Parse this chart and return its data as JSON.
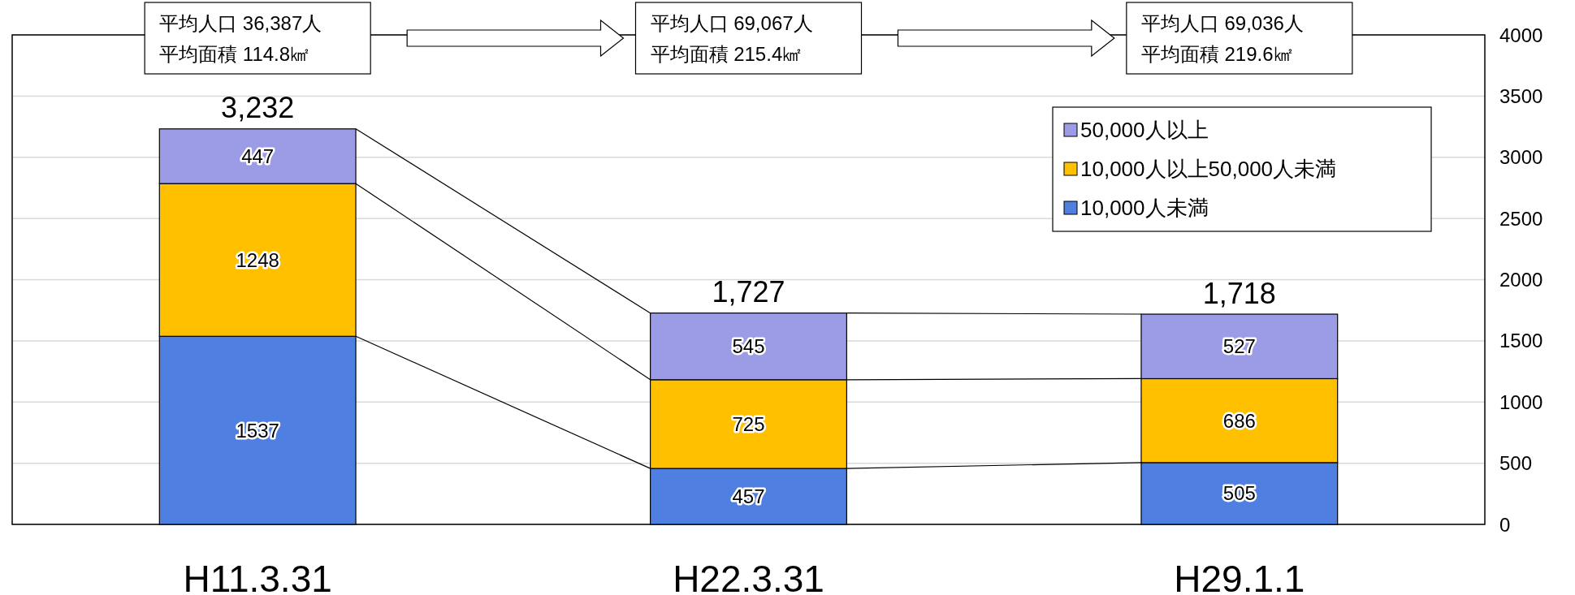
{
  "chart_data": {
    "type": "bar",
    "stacked": true,
    "categories": [
      "H11.3.31",
      "H22.3.31",
      "H29.1.1"
    ],
    "series": [
      {
        "name": "10,000人未満",
        "color": "#4f7fe0",
        "values": [
          1537,
          457,
          505
        ]
      },
      {
        "name": "10,000人以上50,000人未満",
        "color": "#ffc000",
        "values": [
          1248,
          725,
          686
        ]
      },
      {
        "name": "50,000人以上",
        "color": "#9b9be6",
        "values": [
          447,
          545,
          527
        ]
      }
    ],
    "ylim": [
      0,
      4000
    ],
    "yticks": [
      0,
      500,
      1000,
      1500,
      2000,
      2500,
      3000,
      3500,
      4000
    ],
    "grid": "y",
    "legend": "top right",
    "data_labels": true,
    "totals": [
      "3,232",
      "1,727",
      "1,718"
    ],
    "annotations": [
      "平均人口 36,387人",
      "平均面積 114.8㎢",
      "平均人口 69,067人",
      "平均面積 215.4㎢",
      "平均人口 69,036人",
      "平均面積 219.6㎢"
    ]
  }
}
